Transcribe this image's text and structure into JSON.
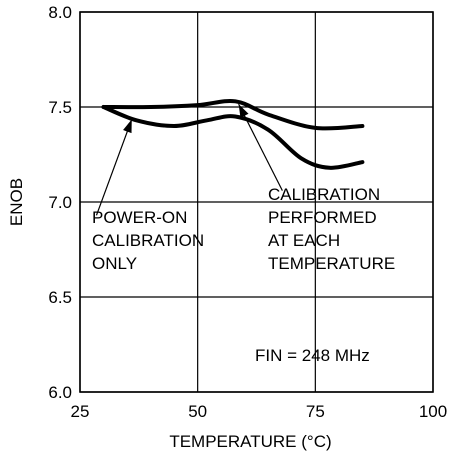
{
  "chart_data": {
    "type": "line",
    "xlabel": "TEMPERATURE (°C)",
    "ylabel": "ENOB",
    "xlim": [
      25,
      100
    ],
    "ylim": [
      6.0,
      8.0
    ],
    "xticks": [
      "25",
      "50",
      "75",
      "100"
    ],
    "yticks": [
      "6.0",
      "6.5",
      "7.0",
      "7.5",
      "8.0"
    ],
    "grid": true,
    "series": [
      {
        "name": "CALIBRATION PERFORMED AT EACH TEMPERATURE",
        "x": [
          30,
          40,
          50,
          58,
          65,
          75,
          85
        ],
        "y": [
          7.5,
          7.5,
          7.51,
          7.53,
          7.46,
          7.39,
          7.4
        ]
      },
      {
        "name": "POWER-ON CALIBRATION ONLY",
        "x": [
          30,
          37,
          45,
          52,
          58,
          65,
          72,
          78,
          85
        ],
        "y": [
          7.5,
          7.43,
          7.4,
          7.43,
          7.45,
          7.38,
          7.23,
          7.18,
          7.21
        ]
      }
    ],
    "annotations": [
      {
        "id": "power_on",
        "lines": [
          "POWER-ON",
          "CALIBRATION",
          "ONLY"
        ]
      },
      {
        "id": "each_temp",
        "lines": [
          "CALIBRATION",
          "PERFORMED",
          "AT EACH",
          "TEMPERATURE"
        ]
      },
      {
        "id": "fin",
        "text": "FIN = 248 MHz"
      }
    ],
    "colors": {
      "line": "#000000",
      "grid": "#000000",
      "background": "#ffffff"
    }
  }
}
